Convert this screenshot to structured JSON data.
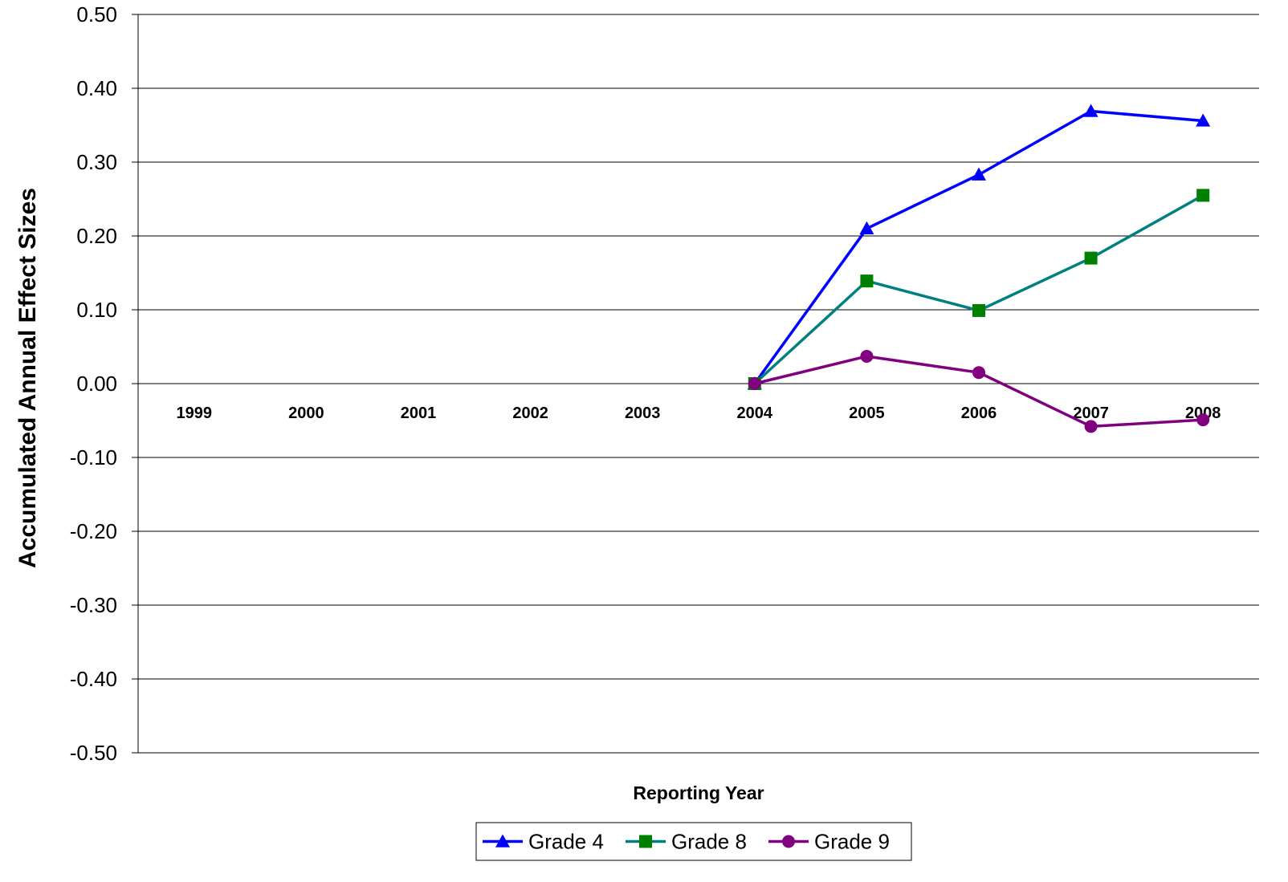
{
  "chart_data": {
    "type": "line",
    "title": "",
    "xlabel": "Reporting Year",
    "ylabel": "Accumulated Annual Effect Sizes",
    "categories": [
      "1999",
      "2000",
      "2001",
      "2002",
      "2003",
      "2004",
      "2005",
      "2006",
      "2007",
      "2008"
    ],
    "ylim": [
      -0.5,
      0.5
    ],
    "yticks": [
      "0.50",
      "0.40",
      "0.30",
      "0.20",
      "0.10",
      "0.00",
      "-0.10",
      "-0.20",
      "-0.30",
      "-0.40",
      "-0.50"
    ],
    "grid": true,
    "legend_position": "bottom",
    "series": [
      {
        "name": "Grade 4",
        "color": "#0000FF",
        "marker": "triangle",
        "values": [
          null,
          null,
          null,
          null,
          null,
          0.0,
          0.21,
          0.283,
          0.369,
          0.356
        ]
      },
      {
        "name": "Grade 8",
        "color": "#008080",
        "marker_color": "#008000",
        "marker": "square",
        "values": [
          null,
          null,
          null,
          null,
          null,
          0.0,
          0.139,
          0.099,
          0.17,
          0.255
        ]
      },
      {
        "name": "Grade 9",
        "color": "#800080",
        "marker": "circle",
        "values": [
          null,
          null,
          null,
          null,
          null,
          0.0,
          0.037,
          0.015,
          -0.058,
          -0.049
        ]
      }
    ]
  }
}
